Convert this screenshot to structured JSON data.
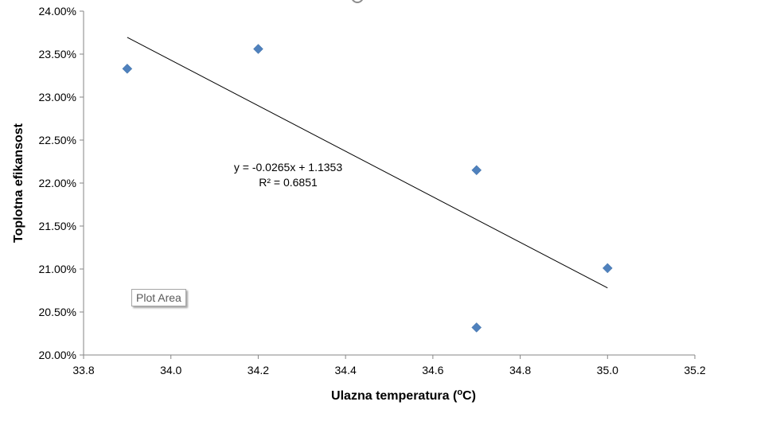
{
  "chart_data": {
    "type": "scatter",
    "xlabel_main": "Ulazna temperatura (",
    "xlabel_sup": "o",
    "xlabel_end": "C)",
    "ylabel": "Toplotna efikansost",
    "xlim": [
      33.8,
      35.2
    ],
    "ylim": [
      0.2,
      0.24
    ],
    "x_ticks": [
      33.8,
      34.0,
      34.2,
      34.4,
      34.6,
      34.8,
      35.0,
      35.2
    ],
    "x_tick_labels": [
      "33.8",
      "34.0",
      "34.2",
      "34.4",
      "34.6",
      "34.8",
      "35.0",
      "35.2"
    ],
    "y_ticks": [
      0.2,
      0.205,
      0.21,
      0.215,
      0.22,
      0.225,
      0.23,
      0.235,
      0.24
    ],
    "y_tick_labels": [
      "20.00%",
      "20.50%",
      "21.00%",
      "21.50%",
      "22.00%",
      "22.50%",
      "23.00%",
      "23.50%",
      "24.00%"
    ],
    "grid": false,
    "series": [
      {
        "marker": "diamond",
        "color": "#4f81bd",
        "points": [
          {
            "x": 33.9,
            "y": 0.2333
          },
          {
            "x": 34.2,
            "y": 0.2356
          },
          {
            "x": 34.7,
            "y": 0.2215
          },
          {
            "x": 35.0,
            "y": 0.2101
          },
          {
            "x": 34.7,
            "y": 0.2032
          }
        ]
      }
    ],
    "trendline": {
      "type": "linear",
      "slope": -0.0265,
      "intercept": 1.1353,
      "x_range": [
        33.9,
        35.0
      ],
      "color": "#000000",
      "equation_label": "y = -0.0265x + 1.1353",
      "r2_label": "R² = 0.6851"
    }
  },
  "tooltip": {
    "label": "Plot Area"
  }
}
